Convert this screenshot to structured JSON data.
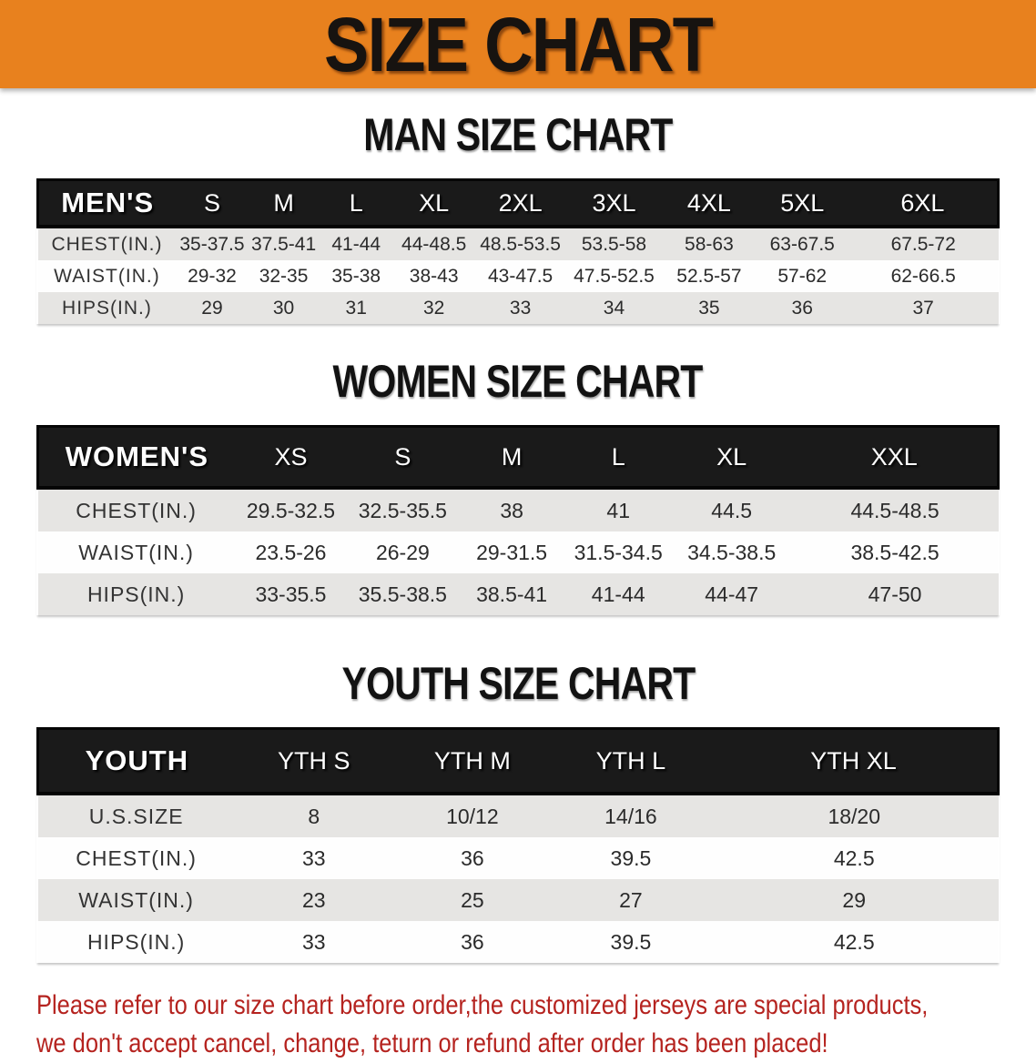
{
  "banner": {
    "title": "SIZE CHART"
  },
  "chart_data": [
    {
      "type": "table",
      "title": "MAN SIZE CHART",
      "header_label": "MEN'S",
      "columns": [
        "S",
        "M",
        "L",
        "XL",
        "2XL",
        "3XL",
        "4XL",
        "5XL",
        "6XL"
      ],
      "rows": [
        {
          "label": "CHEST(IN.)",
          "values": [
            "35-37.5",
            "37.5-41",
            "41-44",
            "44-48.5",
            "48.5-53.5",
            "53.5-58",
            "58-63",
            "63-67.5",
            "67.5-72"
          ]
        },
        {
          "label": "WAIST(IN.)",
          "values": [
            "29-32",
            "32-35",
            "35-38",
            "38-43",
            "43-47.5",
            "47.5-52.5",
            "52.5-57",
            "57-62",
            "62-66.5"
          ]
        },
        {
          "label": "HIPS(IN.)",
          "values": [
            "29",
            "30",
            "31",
            "32",
            "33",
            "34",
            "35",
            "36",
            "37"
          ]
        }
      ]
    },
    {
      "type": "table",
      "title": "WOMEN SIZE CHART",
      "header_label": "WOMEN'S",
      "columns": [
        "XS",
        "S",
        "M",
        "L",
        "XL",
        "XXL"
      ],
      "rows": [
        {
          "label": "CHEST(IN.)",
          "values": [
            "29.5-32.5",
            "32.5-35.5",
            "38",
            "41",
            "44.5",
            "44.5-48.5"
          ]
        },
        {
          "label": "WAIST(IN.)",
          "values": [
            "23.5-26",
            "26-29",
            "29-31.5",
            "31.5-34.5",
            "34.5-38.5",
            "38.5-42.5"
          ]
        },
        {
          "label": "HIPS(IN.)",
          "values": [
            "33-35.5",
            "35.5-38.5",
            "38.5-41",
            "41-44",
            "44-47",
            "47-50"
          ]
        }
      ]
    },
    {
      "type": "table",
      "title": "YOUTH SIZE CHART",
      "header_label": "YOUTH",
      "columns": [
        "YTH S",
        "YTH M",
        "YTH L",
        "YTH XL"
      ],
      "rows": [
        {
          "label": "U.S.SIZE",
          "values": [
            "8",
            "10/12",
            "14/16",
            "18/20"
          ]
        },
        {
          "label": "CHEST(IN.)",
          "values": [
            "33",
            "36",
            "39.5",
            "42.5"
          ]
        },
        {
          "label": "WAIST(IN.)",
          "values": [
            "23",
            "25",
            "27",
            "29"
          ]
        },
        {
          "label": "HIPS(IN.)",
          "values": [
            "33",
            "36",
            "39.5",
            "42.5"
          ]
        }
      ]
    }
  ],
  "footer": {
    "line1": "Please refer to our size chart before order,the customized jerseys are special products,",
    "line2": "we don't accept cancel, change, teturn or refund after order has been placed!"
  },
  "colors": {
    "banner_bg": "#e8811e",
    "header_bar": "#1a1a1a",
    "row_gray": "#e6e5e3",
    "footer_red": "#b5231f"
  }
}
